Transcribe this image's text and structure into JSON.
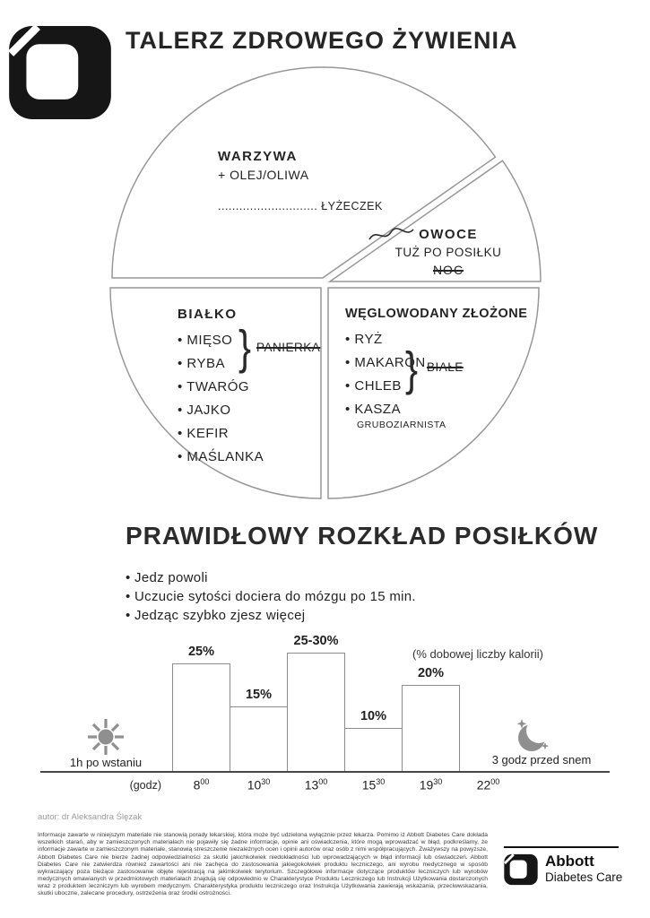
{
  "header": {
    "title": "TALERZ ZDROWEGO ŻYWIENIA"
  },
  "plate": {
    "warzywa": {
      "title": "WARZYWA",
      "subtitle": "+ OLEJ/OLIWA",
      "oil_line": "............................ ŁYŻECZEK"
    },
    "owoce": {
      "title": "OWOCE",
      "note": "TUŻ PO POSIŁKU",
      "crossed_out": "NOC"
    },
    "bialko": {
      "title": "BIAŁKO",
      "items": [
        "MIĘSO",
        "RYBA",
        "TWARÓG",
        "JAJKO",
        "KEFIR",
        "MAŚLANKA"
      ],
      "crossed_out": "PANIERKA"
    },
    "weglowodany": {
      "title": "WĘGLOWODANY ZŁOŻONE",
      "items": [
        "RYŻ",
        "MAKARON",
        "CHLEB",
        "KASZA"
      ],
      "kasza_note": "GRUBOZIARNISTA",
      "crossed_out": "BIAŁE"
    }
  },
  "meals": {
    "title": "PRAWIDŁOWY ROZKŁAD POSIŁKÓW",
    "bullets": [
      "Jedz powoli",
      "Uczucie sytości dociera do mózgu po 15 min.",
      "Jedząc szybko zjesz więcej"
    ]
  },
  "chart_data": {
    "type": "bar",
    "title": "PRAWIDŁOWY ROZKŁAD POSIŁKÓW",
    "unit_note": "(% dobowej liczby kalorii)",
    "x_axis_label": "(godz)",
    "x_ticks": [
      "8:00",
      "10:30",
      "13:00",
      "15:30",
      "19:30",
      "22:00"
    ],
    "bars": [
      {
        "time": "8:00",
        "label": "25%",
        "value": 25
      },
      {
        "time": "10:30",
        "label": "15%",
        "value": 15
      },
      {
        "time": "13:00",
        "label": "25-30%",
        "value": 27.5
      },
      {
        "time": "15:30",
        "label": "10%",
        "value": 10
      },
      {
        "time": "19:30",
        "label": "20%",
        "value": 20
      }
    ],
    "ylim": [
      0,
      30
    ],
    "grid": false,
    "wake_note": "1h po wstaniu",
    "sleep_note": "3 godz przed snem"
  },
  "footer": {
    "author": "autor: dr Aleksandra Ślęzak",
    "disclaimer": "Informacje zawarte w niniejszym materiale nie stanowią porady lekarskiej, która może być udzielona wyłącznie przez lekarza. Pomimo iż Abbott Diabetes Care dokłada wszelkich starań, aby w zamieszczonych materiałach nie pojawiły się żadne informacje, opinie ani oświadczenia, które mogą wprowadzać w błąd, podkreślamy, że informacje zawarte w zamieszczonym materiale, stanowią streszczenie niezależnych ocen i opinii autorów oraz osób z nimi współpracujących. Zważywszy na powyższe, Abbott Diabetes Care nie bierze żadnej odpowiedzialności za skutki jakichkolwiek niedokładności lub wprowadzających w błąd informacji lub oświadczeń. Abbott Diabetes Care nie zatwierdza również zawartości ani nie zachęca do zastosowania jakiegokolwiek produktu leczniczego, ani wyrobu medycznego w sposób wykraczający poza bieżące zastosowanie objęte rejestracją na jakimkolwiek terytorium. Szczegółowe informacje dotyczące produktów leczniczych lub wyrobów medycznych omawianych w przedmiotowych materiałach znajdują się odpowiednio w Charakterystyce Produktu Leczniczego lub Instrukcji Użytkowania dostarczonych wraz z produktem leczniczym lub wyrobem medycznym. Charakterystyka produktu leczniczego oraz Instrukcja Użytkowania zawierają wskazania, przeciwwskazania, skutki uboczne, zalecane procedury, ostrzeżenia oraz środki ostrożności.",
    "brand_name": "Abbott",
    "brand_division": "Diabetes Care"
  }
}
